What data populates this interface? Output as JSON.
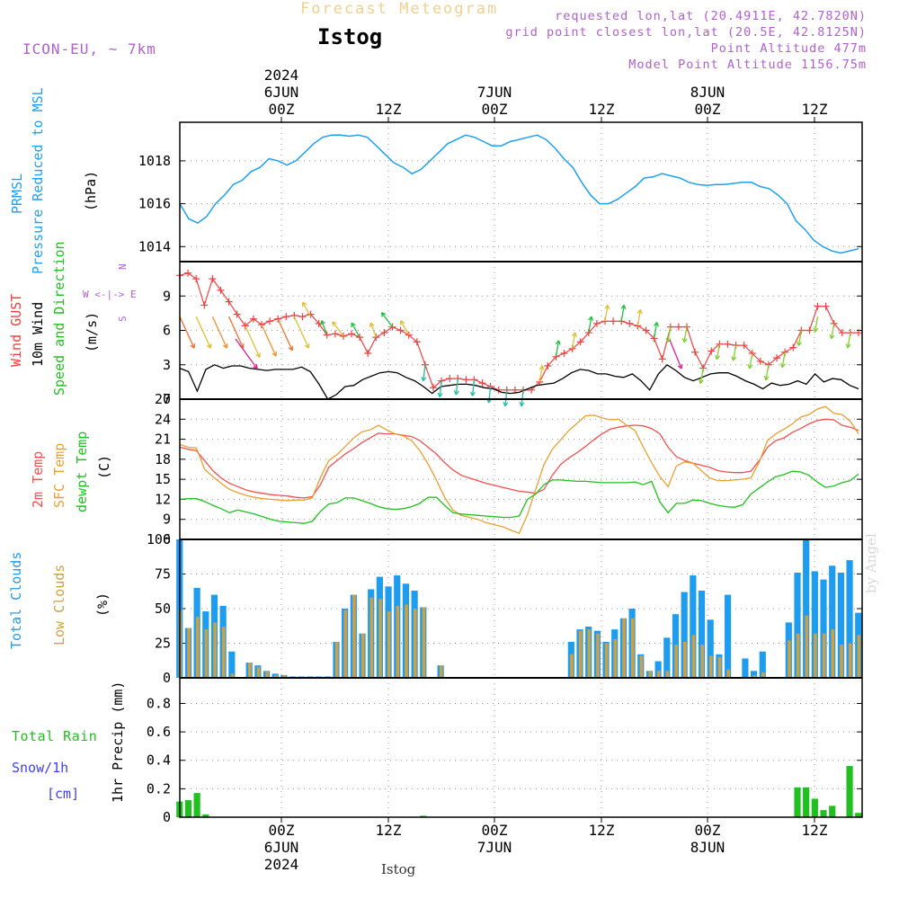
{
  "header": {
    "title": "Forecast Meteogram",
    "station": "Istog",
    "model": "ICON-EU, ~ 7km",
    "info": [
      "requested lon,lat (20.4911E, 42.7820N)",
      "grid point closest lon,lat (20.5E, 42.8125N)",
      "Point Altitude 477m",
      "Model Point Altitude 1156.75m"
    ],
    "watermark": "by Angel",
    "bottom_station": "Istog"
  },
  "colors": {
    "pressure": "#1ea0f0",
    "gust": "#f04040",
    "wind": "#000000",
    "temp2m": "#f05050",
    "sfctemp": "#e8a030",
    "dewpt": "#20c020",
    "total_clouds": "#1e9cf0",
    "low_clouds": "#d0a040",
    "rain": "#20c020",
    "snow": "#4040f0",
    "speed_dir": "#20c020",
    "axis_label_purple": "#b060d0"
  },
  "chart_data": [
    {
      "type": "line",
      "name": "pressure",
      "ylabel_lines": [
        "PRMSL",
        "Pressure Reduced to MSL"
      ],
      "unit": "(hPa)",
      "ylim": [
        1013.3,
        1019.8
      ],
      "yticks": [
        1014,
        1016,
        1018
      ],
      "ytick_labels": [
        "1014",
        "1016",
        "1018"
      ],
      "x": [
        0,
        1,
        2,
        3,
        4,
        5,
        6,
        7,
        8,
        9,
        10,
        11,
        12,
        13,
        14,
        15,
        16,
        17,
        18,
        19,
        20,
        21,
        22,
        23,
        24,
        25,
        26,
        27,
        28,
        29,
        30,
        31,
        32,
        33,
        34,
        35,
        36,
        37,
        38,
        39,
        40,
        41,
        42,
        43,
        44,
        45,
        46,
        47,
        48,
        49,
        50,
        51,
        52,
        53,
        54,
        55,
        56,
        57,
        58,
        59,
        60,
        61,
        62,
        63,
        64,
        65,
        66,
        67,
        68,
        69,
        70,
        71,
        72,
        73,
        74,
        75,
        76
      ],
      "series": [
        {
          "name": "PRMSL",
          "values": [
            1016.0,
            1015.3,
            1015.1,
            1015.4,
            1016.0,
            1016.4,
            1016.9,
            1017.1,
            1017.5,
            1017.7,
            1018.1,
            1018.0,
            1017.8,
            1018.0,
            1018.4,
            1018.8,
            1019.1,
            1019.2,
            1019.2,
            1019.15,
            1019.2,
            1019.1,
            1018.7,
            1018.3,
            1017.9,
            1017.7,
            1017.4,
            1017.6,
            1018.0,
            1018.4,
            1018.8,
            1019.0,
            1019.2,
            1019.1,
            1018.9,
            1018.7,
            1018.7,
            1018.9,
            1019.0,
            1019.1,
            1019.2,
            1019.0,
            1018.6,
            1018.1,
            1017.7,
            1017.0,
            1016.4,
            1016.0,
            1016.0,
            1016.2,
            1016.5,
            1016.8,
            1017.2,
            1017.25,
            1017.4,
            1017.3,
            1017.2,
            1017.0,
            1016.9,
            1016.85,
            1016.9,
            1016.9,
            1016.95,
            1017.0,
            1017.0,
            1016.8,
            1016.7,
            1016.4,
            1016.0,
            1015.2,
            1014.8,
            1014.3,
            1014.0,
            1013.8,
            1013.7,
            1013.8,
            1013.9
          ]
        }
      ]
    },
    {
      "type": "line",
      "name": "wind",
      "ylabel_lines": [
        "Wind GUST",
        "10m Wind",
        "Speed and Direction"
      ],
      "unit": "(m/s)",
      "compass": "W <-|-> E",
      "compass_n": "N",
      "compass_s": "S",
      "ylim": [
        0,
        12
      ],
      "yticks": [
        0,
        3,
        6,
        9
      ],
      "ytick_labels": [
        "0",
        "3",
        "6",
        "9"
      ],
      "series": [
        {
          "name": "Wind GUST",
          "values": [
            10.8,
            11.0,
            10.5,
            8.2,
            10.5,
            9.5,
            8.5,
            7.4,
            6.4,
            7.0,
            6.5,
            6.8,
            7.0,
            7.2,
            7.3,
            7.2,
            7.4,
            6.6,
            5.6,
            5.7,
            5.5,
            5.7,
            5.4,
            4.0,
            5.4,
            5.8,
            6.3,
            6.0,
            5.6,
            5.0,
            3.0,
            1.0,
            1.6,
            1.8,
            1.8,
            1.7,
            1.7,
            1.4,
            1.1,
            0.8,
            0.8,
            0.8,
            0.8,
            0.8,
            1.5,
            2.9,
            3.7,
            4.0,
            4.4,
            5.0,
            5.8,
            6.6,
            6.8,
            6.8,
            6.8,
            6.6,
            6.4,
            6.0,
            5.3,
            3.5,
            6.3,
            6.3,
            6.3,
            4.1,
            2.7,
            4.2,
            4.8,
            4.8,
            4.7,
            4.7,
            4.0,
            3.3,
            3.0,
            3.6,
            4.1,
            4.5,
            6.0,
            6.0,
            8.1,
            8.1,
            6.6,
            5.8,
            5.8,
            5.8
          ]
        },
        {
          "name": "10m Wind",
          "values": [
            2.7,
            2.4,
            0.7,
            2.6,
            3.0,
            2.7,
            2.9,
            2.9,
            2.7,
            2.6,
            2.5,
            2.6,
            2.6,
            2.6,
            2.8,
            2.4,
            1.3,
            0.0,
            0.4,
            1.1,
            1.2,
            1.7,
            2.0,
            2.3,
            2.4,
            2.3,
            1.9,
            1.6,
            1.1,
            0.5,
            1.1,
            1.2,
            1.3,
            1.3,
            1.2,
            1.0,
            0.9,
            0.6,
            0.5,
            0.6,
            0.9,
            1.2,
            1.3,
            1.4,
            1.8,
            2.3,
            2.6,
            2.5,
            2.2,
            2.2,
            2.0,
            1.9,
            2.2,
            1.6,
            0.8,
            2.2,
            3.0,
            2.5,
            1.9,
            1.6,
            1.9,
            2.2,
            2.3,
            2.3,
            2.0,
            1.6,
            1.3,
            0.9,
            1.4,
            1.2,
            1.3,
            1.6,
            1.3,
            2.2,
            1.5,
            1.8,
            1.7,
            1.2,
            0.9
          ]
        }
      ]
    },
    {
      "type": "line",
      "name": "temperature",
      "ylabel_lines": [
        "2m Temp",
        "SFC Temp",
        "dewpt Temp"
      ],
      "unit": "(C)",
      "ylim": [
        6,
        27
      ],
      "yticks": [
        6,
        9,
        12,
        15,
        18,
        21,
        24,
        27
      ],
      "ytick_labels": [
        "6",
        "9",
        "12",
        "15",
        "18",
        "21",
        "24",
        "27"
      ],
      "series": [
        {
          "name": "2m Temp",
          "values": [
            19.8,
            19.5,
            19.3,
            17.8,
            16.3,
            15.2,
            14.4,
            13.9,
            13.4,
            13.1,
            12.9,
            12.7,
            12.6,
            12.5,
            12.3,
            12.2,
            12.4,
            14.2,
            16.8,
            17.8,
            18.8,
            19.6,
            20.5,
            21.2,
            21.9,
            21.8,
            21.8,
            21.6,
            21.4,
            20.8,
            19.8,
            18.8,
            17.5,
            16.4,
            15.6,
            15.2,
            14.8,
            14.4,
            14.1,
            13.8,
            13.5,
            13.2,
            13.1,
            12.9,
            13.5,
            15.6,
            17.2,
            18.2,
            19.0,
            19.9,
            20.9,
            21.8,
            22.5,
            22.8,
            23.0,
            23.1,
            23.0,
            22.6,
            21.8,
            19.8,
            18.4,
            17.8,
            17.4,
            17.1,
            16.8,
            16.3,
            16.1,
            16.0,
            16.0,
            16.2,
            17.8,
            19.8,
            20.8,
            21.2,
            22.0,
            22.6,
            23.3,
            23.8,
            24.0,
            23.9,
            23.1,
            22.8,
            22.3
          ]
        },
        {
          "name": "SFC Temp",
          "values": [
            20.2,
            19.8,
            19.7,
            16.5,
            15.4,
            14.4,
            13.5,
            13.0,
            12.6,
            12.3,
            12.1,
            12.0,
            11.9,
            11.8,
            11.9,
            11.9,
            12.2,
            15.3,
            17.8,
            18.7,
            19.9,
            21.2,
            22.1,
            22.4,
            23.1,
            22.4,
            21.8,
            21.5,
            20.8,
            19.3,
            17.3,
            14.9,
            12.3,
            10.4,
            9.6,
            9.3,
            9.0,
            8.5,
            8.2,
            7.9,
            7.4,
            6.9,
            9.7,
            13.5,
            17.2,
            19.5,
            20.9,
            22.3,
            23.4,
            24.5,
            24.6,
            24.2,
            23.9,
            24.0,
            23.1,
            22.3,
            19.8,
            17.5,
            15.4,
            13.9,
            17.0,
            17.6,
            17.4,
            16.3,
            15.2,
            14.8,
            14.8,
            14.9,
            15.0,
            15.2,
            17.6,
            20.8,
            21.8,
            22.5,
            23.3,
            24.3,
            24.7,
            25.5,
            25.9,
            24.9,
            24.7,
            23.7,
            21.8
          ]
        },
        {
          "name": "dewpt Temp",
          "values": [
            12.0,
            12.1,
            12.1,
            11.7,
            11.1,
            10.6,
            10.0,
            10.4,
            10.1,
            9.8,
            9.4,
            9.0,
            8.7,
            8.6,
            8.5,
            8.4,
            8.7,
            10.2,
            11.3,
            11.5,
            12.2,
            12.2,
            11.8,
            11.4,
            10.9,
            10.6,
            10.5,
            10.6,
            10.9,
            11.4,
            12.3,
            12.3,
            11.1,
            10.0,
            9.8,
            9.7,
            9.6,
            9.5,
            9.4,
            9.3,
            9.3,
            9.5,
            12.0,
            12.8,
            14.2,
            14.9,
            14.9,
            14.8,
            14.7,
            14.7,
            14.6,
            14.5,
            14.5,
            14.5,
            14.5,
            14.6,
            14.2,
            14.7,
            11.6,
            10.0,
            11.4,
            11.4,
            11.9,
            11.8,
            11.4,
            11.1,
            10.9,
            10.8,
            11.2,
            12.8,
            13.7,
            14.6,
            15.4,
            15.7,
            16.2,
            16.1,
            15.6,
            14.6,
            13.8,
            14.0,
            14.5,
            14.8,
            15.8
          ]
        }
      ]
    },
    {
      "type": "bar",
      "name": "clouds",
      "ylabel_lines": [
        "Total Clouds",
        "Low Clouds"
      ],
      "unit": "(%)",
      "ylim": [
        0,
        100
      ],
      "yticks": [
        0,
        25,
        50,
        75,
        100
      ],
      "ytick_labels": [
        "0",
        "25",
        "50",
        "75",
        "100"
      ],
      "series": [
        {
          "name": "Total Clouds",
          "values": [
            100,
            36,
            65,
            48,
            60,
            52,
            19,
            0,
            11,
            9,
            5,
            3,
            2,
            1,
            1,
            1,
            1,
            1,
            26,
            50,
            60,
            32,
            64,
            73,
            66,
            74,
            68,
            63,
            51,
            0,
            9,
            0,
            0,
            0,
            0,
            0,
            0,
            0,
            0,
            0,
            0,
            0,
            0,
            0,
            0,
            26,
            35,
            37,
            34,
            26,
            35,
            43,
            50,
            17,
            5,
            12,
            29,
            46,
            62,
            74,
            63,
            42,
            17,
            60,
            0,
            14,
            5,
            19,
            0,
            0,
            40,
            76,
            100,
            77,
            71,
            81,
            76,
            85,
            47
          ]
        },
        {
          "name": "Low Clouds",
          "values": [
            49,
            36,
            44,
            35,
            40,
            37,
            3,
            0,
            11,
            8,
            5,
            2,
            2,
            0,
            0,
            0,
            0,
            0,
            26,
            49,
            60,
            32,
            58,
            57,
            48,
            52,
            53,
            50,
            51,
            0,
            9,
            0,
            0,
            0,
            0,
            0,
            0,
            0,
            0,
            0,
            0,
            0,
            0,
            0,
            0,
            17,
            34,
            35,
            32,
            25,
            28,
            43,
            43,
            16,
            5,
            5,
            5,
            24,
            26,
            31,
            24,
            16,
            15,
            6,
            0,
            0,
            2,
            4,
            0,
            0,
            27,
            32,
            45,
            32,
            32,
            35,
            24,
            25,
            31
          ]
        }
      ]
    },
    {
      "type": "bar",
      "name": "precip",
      "ylabel": "1hr Precip (mm)",
      "labels_left": [
        "Total Rain",
        "Snow/1h",
        "[cm]"
      ],
      "ylim": [
        0,
        0.98
      ],
      "yticks": [
        0,
        0.2,
        0.4,
        0.6,
        0.8
      ],
      "ytick_labels": [
        "0",
        "0.2",
        "0.4",
        "0.6",
        "0.8"
      ],
      "series": [
        {
          "name": "Total Rain",
          "values": [
            0.11,
            0.12,
            0.17,
            0.02,
            0,
            0,
            0,
            0,
            0,
            0,
            0,
            0,
            0,
            0,
            0,
            0,
            0,
            0,
            0,
            0,
            0,
            0,
            0,
            0,
            0,
            0,
            0,
            0,
            0.01,
            0,
            0,
            0,
            0,
            0,
            0,
            0,
            0,
            0,
            0,
            0,
            0,
            0,
            0,
            0,
            0,
            0,
            0,
            0,
            0,
            0,
            0,
            0,
            0,
            0,
            0,
            0,
            0,
            0,
            0,
            0,
            0,
            0,
            0,
            0,
            0,
            0,
            0,
            0,
            0,
            0,
            0,
            0.21,
            0.21,
            0.13,
            0.05,
            0.08,
            0,
            0.36,
            0.03
          ]
        }
      ]
    }
  ],
  "x_axis": {
    "top_ticks": [
      {
        "lines": [
          "2024",
          "6JUN",
          "00Z"
        ]
      },
      {
        "lines": [
          "12Z"
        ]
      },
      {
        "lines": [
          "7JUN",
          "00Z"
        ]
      },
      {
        "lines": [
          "12Z"
        ]
      },
      {
        "lines": [
          "8JUN",
          "00Z"
        ]
      },
      {
        "lines": [
          "12Z"
        ]
      }
    ],
    "bottom_ticks": [
      {
        "lines": [
          "00Z",
          "6JUN",
          "2024"
        ]
      },
      {
        "lines": [
          "12Z"
        ]
      },
      {
        "lines": [
          "00Z",
          "7JUN"
        ]
      },
      {
        "lines": [
          "12Z"
        ]
      },
      {
        "lines": [
          "00Z",
          "8JUN"
        ]
      },
      {
        "lines": [
          "12Z"
        ]
      }
    ]
  }
}
